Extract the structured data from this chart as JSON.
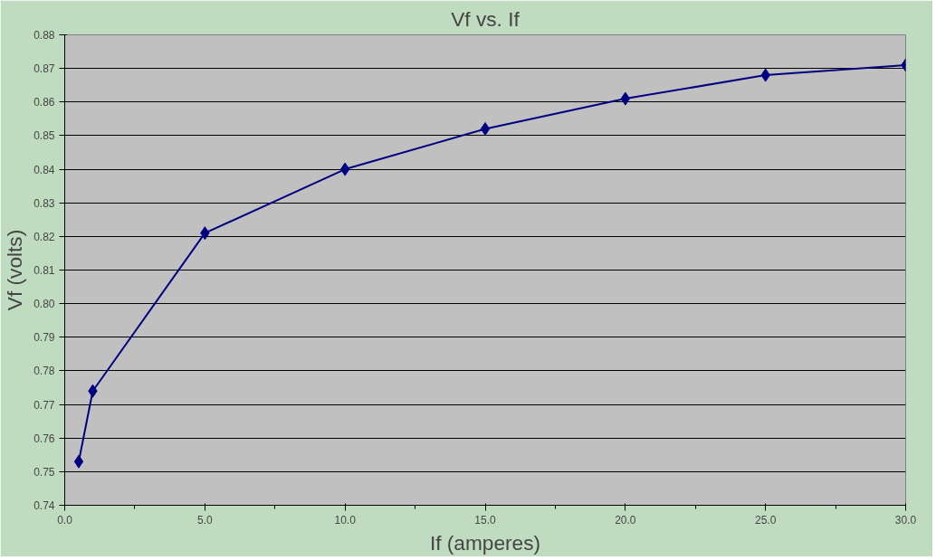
{
  "chart_data": {
    "type": "line",
    "title": "Vf vs. If",
    "xlabel": "If (amperes)",
    "ylabel": "Vf (volts)",
    "x": [
      0.5,
      1,
      5,
      10,
      15,
      20,
      25,
      30
    ],
    "series": [
      {
        "color": "#000080",
        "values": [
          0.753,
          0.774,
          0.821,
          0.84,
          0.852,
          0.861,
          0.868,
          0.871
        ]
      }
    ],
    "xlim": [
      0,
      30
    ],
    "ylim": [
      0.74,
      0.88
    ],
    "xticks": [
      {
        "value": 0,
        "label": "0.0"
      },
      {
        "value": 5,
        "label": "5.0"
      },
      {
        "value": 10,
        "label": "10.0"
      },
      {
        "value": 15,
        "label": "15.0"
      },
      {
        "value": 20,
        "label": "20.0"
      },
      {
        "value": 25,
        "label": "25.0"
      },
      {
        "value": 30,
        "label": "30.0"
      }
    ],
    "yticks": [
      {
        "value": 0.74,
        "label": "0.74"
      },
      {
        "value": 0.75,
        "label": "0.75"
      },
      {
        "value": 0.76,
        "label": "0.76"
      },
      {
        "value": 0.77,
        "label": "0.77"
      },
      {
        "value": 0.78,
        "label": "0.78"
      },
      {
        "value": 0.79,
        "label": "0.79"
      },
      {
        "value": 0.8,
        "label": "0.80"
      },
      {
        "value": 0.81,
        "label": "0.81"
      },
      {
        "value": 0.82,
        "label": "0.82"
      },
      {
        "value": 0.83,
        "label": "0.83"
      },
      {
        "value": 0.84,
        "label": "0.84"
      },
      {
        "value": 0.85,
        "label": "0.85"
      },
      {
        "value": 0.86,
        "label": "0.86"
      },
      {
        "value": 0.87,
        "label": "0.87"
      },
      {
        "value": 0.88,
        "label": "0.88"
      }
    ],
    "grid": "y",
    "marker": "diamond",
    "line_style": "solid"
  }
}
